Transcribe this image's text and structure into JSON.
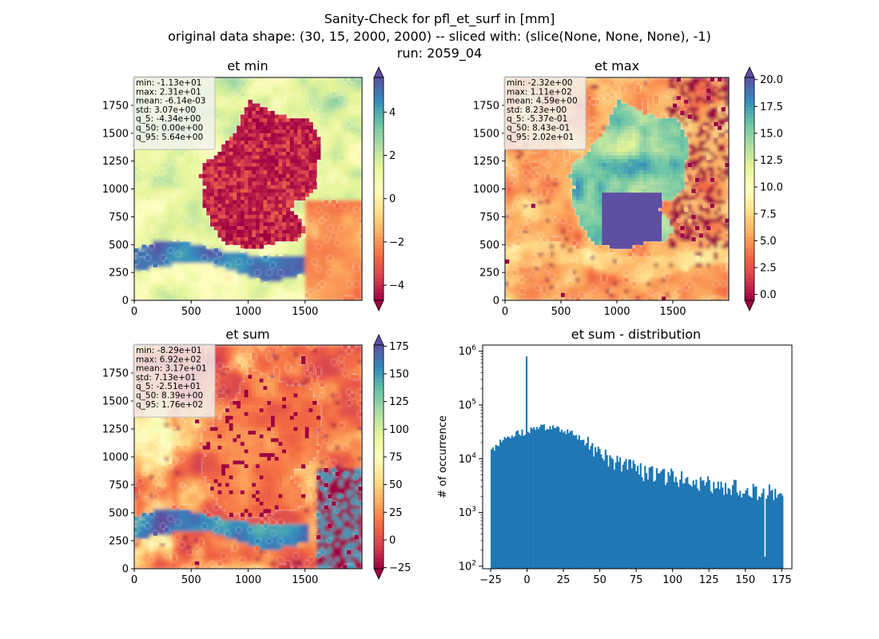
{
  "figure": {
    "title_lines": [
      "Sanity-Check for pfl_et_surf in [mm]",
      "original data shape: (30, 15, 2000, 2000) -- sliced with: (slice(None, None, None), -1)",
      "run: 2059_04"
    ]
  },
  "colormap": {
    "name": "Spectral",
    "stops": [
      "#9e0142",
      "#d53e4f",
      "#f46d43",
      "#fdae61",
      "#fee08b",
      "#ffffbf",
      "#e6f598",
      "#abdda4",
      "#66c2a5",
      "#3288bd",
      "#5e4fa2"
    ],
    "under_color": "#9e0142",
    "over_color": "#5e4fa2"
  },
  "chart_data": [
    {
      "type": "heatmap",
      "id": "et-min",
      "title": "et min",
      "xlim": [
        0,
        2000
      ],
      "ylim": [
        0,
        2000
      ],
      "xticks": [
        0,
        500,
        1000,
        1500
      ],
      "yticks": [
        0,
        250,
        500,
        750,
        1000,
        1250,
        1500,
        1750
      ],
      "colorbar": {
        "min": -4.7,
        "max": 5.6,
        "ticks": [
          -4,
          -2,
          0,
          2,
          4
        ],
        "extend": "both"
      },
      "stats": [
        "min: -1.13e+01",
        "max: 2.31e+01",
        "mean: -6.14e-03",
        "std: 3.07e+00",
        "q_5: -4.34e+00",
        "q_50: 0.00e+00",
        "q_95: 5.64e+00"
      ]
    },
    {
      "type": "heatmap",
      "id": "et-max",
      "title": "et max",
      "xlim": [
        0,
        2000
      ],
      "ylim": [
        0,
        2000
      ],
      "xticks": [
        0,
        500,
        1000,
        1500
      ],
      "yticks": [
        0,
        250,
        500,
        750,
        1000,
        1250,
        1500,
        1750
      ],
      "colorbar": {
        "min": -0.55,
        "max": 20.2,
        "ticks": [
          0.0,
          2.5,
          5.0,
          7.5,
          10.0,
          12.5,
          15.0,
          17.5,
          20.0
        ],
        "tick_labels": [
          "0.0",
          "2.5",
          "5.0",
          "7.5",
          "10.0",
          "12.5",
          "15.0",
          "17.5",
          "20.0"
        ],
        "extend": "both"
      },
      "stats": [
        "min: -2.32e+00",
        "max: 1.11e+02",
        "mean: 4.59e+00",
        "std: 8.23e+00",
        "q_5: -5.37e-01",
        "q_50: 8.43e-01",
        "q_95: 2.02e+01"
      ]
    },
    {
      "type": "heatmap",
      "id": "et-sum",
      "title": "et sum",
      "xlim": [
        0,
        2000
      ],
      "ylim": [
        0,
        2000
      ],
      "xticks": [
        0,
        500,
        1000,
        1500
      ],
      "yticks": [
        0,
        250,
        500,
        750,
        1000,
        1250,
        1500,
        1750
      ],
      "colorbar": {
        "min": -26,
        "max": 176,
        "ticks": [
          -25,
          0,
          25,
          50,
          75,
          100,
          125,
          150,
          175
        ],
        "extend": "both"
      },
      "stats": [
        "min: -8.29e+01",
        "max: 6.92e+02",
        "mean: 3.17e+01",
        "std: 7.13e+01",
        "q_5: -2.51e+01",
        "q_50: 8.39e+00",
        "q_95: 1.76e+02"
      ]
    },
    {
      "type": "bar",
      "id": "et-sum-distribution",
      "title": "et sum - distribution",
      "ylabel": "# of occurrence",
      "yscale": "log",
      "xlim": [
        -30.5,
        182
      ],
      "ylim": [
        90,
        1300000
      ],
      "xticks": [
        -25,
        0,
        25,
        50,
        75,
        100,
        125,
        150,
        175
      ],
      "color": "#1f77b4",
      "bin_range": [
        -25,
        176
      ],
      "bin_count": 200,
      "profile": {
        "x": [
          -25,
          -20,
          -15,
          -10,
          -5,
          -1,
          0,
          1,
          5,
          10,
          15,
          20,
          25,
          30,
          40,
          50,
          60,
          75,
          100,
          125,
          150,
          165,
          176
        ],
        "y": [
          13000,
          19000,
          24000,
          28000,
          30000,
          31000,
          34000,
          34000,
          36000,
          38000,
          39000,
          37000,
          34000,
          30000,
          20000,
          12500,
          8500,
          6000,
          4500,
          3500,
          2600,
          2200,
          2500
        ]
      },
      "spikes": [
        {
          "x": 0,
          "y": 800000
        },
        {
          "x": 163,
          "y": 150
        }
      ]
    }
  ]
}
